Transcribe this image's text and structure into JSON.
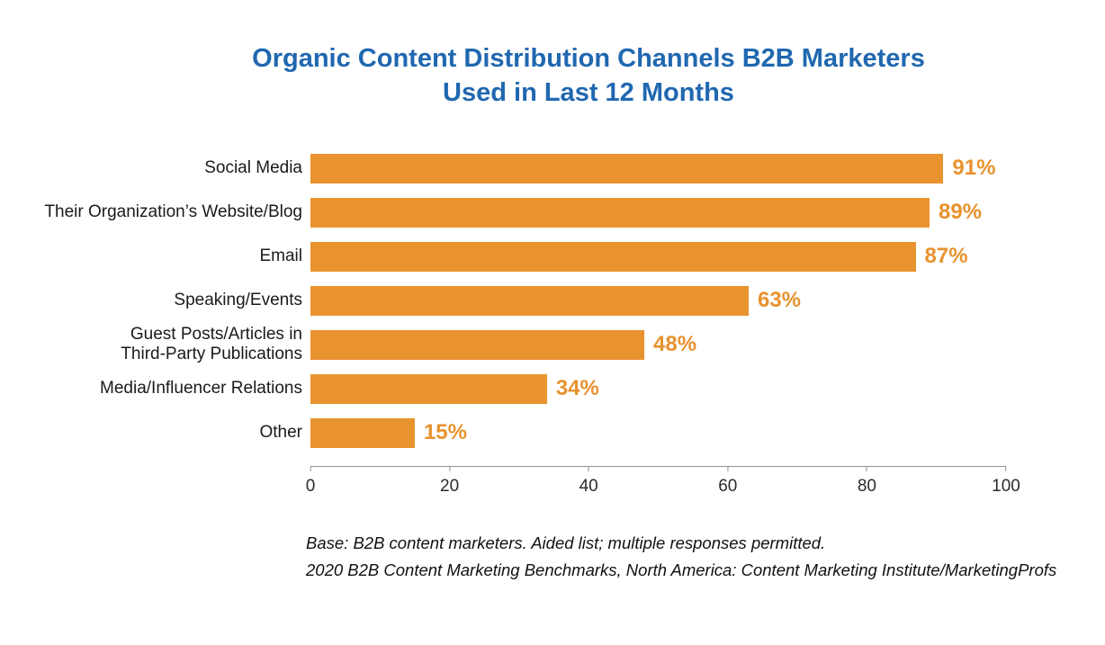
{
  "title": {
    "line1": "Organic Content Distribution Channels B2B Marketers",
    "line2": "Used in Last 12 Months",
    "color": "#2068b0"
  },
  "chart_data": {
    "type": "bar",
    "orientation": "horizontal",
    "title": "Organic Content Distribution Channels B2B Marketers Used in Last 12 Months",
    "categories": [
      "Social Media",
      "Their Organization’s Website/Blog",
      "Email",
      "Speaking/Events",
      "Guest Posts/Articles in\nThird-Party Publications",
      "Media/Influencer Relations",
      "Other"
    ],
    "values": [
      91,
      89,
      87,
      63,
      48,
      34,
      15
    ],
    "value_suffix": "%",
    "xlabel": "",
    "ylabel": "",
    "xlim": [
      0,
      100
    ],
    "x_ticks": [
      0,
      20,
      40,
      60,
      80,
      100
    ],
    "bar_color": "#e9932f",
    "value_label_color": "#e8922e",
    "grid": false,
    "legend": false
  },
  "footnotes": {
    "line1": "Base: B2B content marketers. Aided list; multiple responses permitted.",
    "line2": "2020 B2B Content Marketing Benchmarks, North America: Content Marketing Institute/MarketingProfs"
  }
}
